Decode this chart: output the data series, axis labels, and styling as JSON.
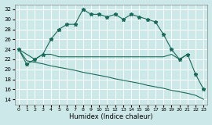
{
  "xlabel": "Humidex (Indice chaleur)",
  "bg_color": "#cde8e8",
  "grid_color": "#ffffff",
  "line_color": "#1a6b5a",
  "xlim": [
    -0.5,
    23.5
  ],
  "ylim": [
    13,
    33
  ],
  "xticks": [
    0,
    1,
    2,
    3,
    4,
    5,
    6,
    7,
    8,
    9,
    10,
    11,
    12,
    13,
    14,
    15,
    16,
    17,
    18,
    19,
    20,
    21,
    22,
    23
  ],
  "yticks": [
    14,
    16,
    18,
    20,
    22,
    24,
    26,
    28,
    30,
    32
  ],
  "series1_x": [
    0,
    1,
    2,
    3,
    4,
    5,
    6,
    7,
    8,
    9,
    10,
    11,
    12,
    13,
    14,
    15,
    16,
    17,
    18,
    19,
    20,
    21,
    22,
    23
  ],
  "series1_y": [
    24,
    21,
    22,
    23,
    26,
    28,
    29,
    29,
    32,
    31,
    31,
    30.5,
    31,
    30,
    31,
    30.5,
    30,
    29.5,
    27,
    24,
    22,
    23,
    19,
    16
  ],
  "series2_x": [
    0,
    2,
    3,
    4,
    5,
    6,
    7,
    8,
    9,
    10,
    11,
    12,
    13,
    14,
    15,
    16,
    17,
    18,
    19,
    20,
    21
  ],
  "series2_y": [
    24,
    22,
    23,
    23,
    22.5,
    22.5,
    22.5,
    22.5,
    22.5,
    22.5,
    22.5,
    22.5,
    22.5,
    22.5,
    22.5,
    22.5,
    22.5,
    22.5,
    23,
    22,
    23
  ],
  "series3_x": [
    0,
    1,
    2,
    3,
    4,
    5,
    6,
    7,
    8,
    9,
    10,
    11,
    12,
    13,
    14,
    15,
    16,
    17,
    18,
    19,
    20,
    21,
    22,
    23
  ],
  "series3_y": [
    24,
    21.7,
    21.4,
    21.1,
    20.7,
    20.4,
    20.1,
    19.8,
    19.4,
    19.1,
    18.8,
    18.5,
    18.1,
    17.8,
    17.5,
    17.2,
    16.8,
    16.5,
    16.2,
    15.8,
    15.5,
    15.2,
    14.8,
    14
  ]
}
